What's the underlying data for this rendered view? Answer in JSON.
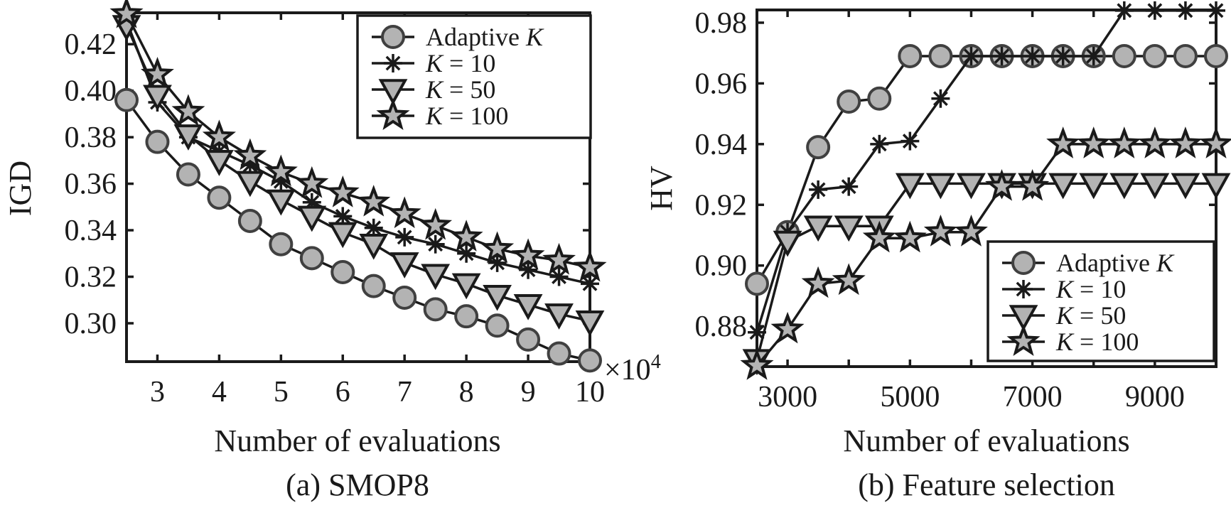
{
  "chart_data": [
    {
      "id": "smop8",
      "type": "line",
      "title": "(a) SMOP8",
      "xlabel": "Number of evaluations",
      "ylabel": "IGD",
      "x_multiplier_label": "×10",
      "x_multiplier_exponent": "4",
      "xlim": [
        2.5,
        10
      ],
      "ylim": [
        0.2835,
        0.4335
      ],
      "xticks": [
        3,
        4,
        5,
        6,
        7,
        8,
        9,
        10
      ],
      "xtick_labels": [
        "3",
        "4",
        "5",
        "6",
        "7",
        "8",
        "9",
        "10"
      ],
      "yticks": [
        0.3,
        0.32,
        0.34,
        0.36,
        0.38,
        0.4,
        0.42
      ],
      "ytick_labels": [
        "0.30",
        "0.32",
        "0.34",
        "0.36",
        "0.38",
        "0.40",
        "0.42"
      ],
      "grid": false,
      "legend_position": "top-right",
      "x": [
        2.5,
        3,
        3.5,
        4,
        4.5,
        5,
        5.5,
        6,
        6.5,
        7,
        7.5,
        8,
        8.5,
        9,
        9.5,
        10
      ],
      "series": [
        {
          "name": "Adaptive K",
          "legend_prefix": "Adaptive ",
          "legend_italic": "K",
          "legend_suffix": "",
          "marker": "circle",
          "values": [
            0.396,
            0.378,
            0.364,
            0.354,
            0.344,
            0.334,
            0.328,
            0.322,
            0.316,
            0.311,
            0.306,
            0.303,
            0.299,
            0.293,
            0.287,
            0.284
          ]
        },
        {
          "name": "K = 10",
          "legend_prefix": "",
          "legend_italic": "K",
          "legend_suffix": " = 10",
          "marker": "asterisk",
          "values": [
            0.43,
            0.395,
            0.38,
            0.374,
            0.368,
            0.361,
            0.352,
            0.346,
            0.341,
            0.337,
            0.334,
            0.33,
            0.326,
            0.323,
            0.32,
            0.317
          ]
        },
        {
          "name": "K = 50",
          "legend_prefix": "",
          "legend_italic": "K",
          "legend_suffix": " = 50",
          "marker": "triangle-down",
          "values": [
            0.428,
            0.398,
            0.381,
            0.37,
            0.361,
            0.353,
            0.346,
            0.339,
            0.334,
            0.326,
            0.321,
            0.317,
            0.312,
            0.308,
            0.304,
            0.301
          ]
        },
        {
          "name": "K = 100",
          "legend_prefix": "",
          "legend_italic": "K",
          "legend_suffix": " = 100",
          "marker": "star",
          "values": [
            0.433,
            0.407,
            0.391,
            0.38,
            0.372,
            0.365,
            0.36,
            0.356,
            0.352,
            0.347,
            0.342,
            0.337,
            0.332,
            0.329,
            0.327,
            0.324
          ]
        }
      ]
    },
    {
      "id": "feature-selection",
      "type": "line",
      "title": "(b) Feature selection",
      "xlabel": "Number of evaluations",
      "ylabel": "HV",
      "xlim": [
        2500,
        10000
      ],
      "ylim": [
        0.8667,
        0.9842
      ],
      "xticks": [
        3000,
        4000,
        5000,
        6000,
        7000,
        8000,
        9000
      ],
      "xtick_labels": [
        "3000",
        "",
        "5000",
        "",
        "7000",
        "",
        "9000"
      ],
      "yticks": [
        0.88,
        0.9,
        0.92,
        0.94,
        0.96,
        0.98
      ],
      "ytick_labels": [
        "0.88",
        "0.90",
        "0.92",
        "0.94",
        "0.96",
        "0.98"
      ],
      "grid": false,
      "legend_position": "bottom-right",
      "x": [
        2500,
        3000,
        3500,
        4000,
        4500,
        5000,
        5500,
        6000,
        6500,
        7000,
        7500,
        8000,
        8500,
        9000,
        9500,
        10000
      ],
      "series": [
        {
          "name": "Adaptive K",
          "legend_prefix": "Adaptive ",
          "legend_italic": "K",
          "legend_suffix": "",
          "marker": "circle",
          "values": [
            0.894,
            0.911,
            0.939,
            0.954,
            0.955,
            0.969,
            0.969,
            0.969,
            0.969,
            0.969,
            0.969,
            0.969,
            0.969,
            0.969,
            0.969,
            0.969
          ]
        },
        {
          "name": "K = 10",
          "legend_prefix": "",
          "legend_italic": "K",
          "legend_suffix": " = 10",
          "marker": "asterisk",
          "values": [
            0.878,
            0.911,
            0.925,
            0.926,
            0.94,
            0.941,
            0.955,
            0.969,
            0.969,
            0.969,
            0.969,
            0.969,
            0.984,
            0.984,
            0.984,
            0.984
          ]
        },
        {
          "name": "K = 50",
          "legend_prefix": "",
          "legend_italic": "K",
          "legend_suffix": " = 50",
          "marker": "triangle-down",
          "values": [
            0.869,
            0.908,
            0.913,
            0.913,
            0.913,
            0.927,
            0.927,
            0.927,
            0.927,
            0.927,
            0.927,
            0.927,
            0.927,
            0.927,
            0.927,
            0.927
          ]
        },
        {
          "name": "K = 100",
          "legend_prefix": "",
          "legend_italic": "K",
          "legend_suffix": " = 100",
          "marker": "star",
          "values": [
            0.867,
            0.879,
            0.894,
            0.895,
            0.909,
            0.909,
            0.911,
            0.911,
            0.926,
            0.926,
            0.94,
            0.94,
            0.94,
            0.94,
            0.94,
            0.94
          ]
        }
      ]
    }
  ],
  "colors": {
    "axis": "#1a1a1a",
    "marker_fill": "#b3b3b3",
    "marker_stroke": "#404040",
    "line": "#1a1a1a"
  }
}
